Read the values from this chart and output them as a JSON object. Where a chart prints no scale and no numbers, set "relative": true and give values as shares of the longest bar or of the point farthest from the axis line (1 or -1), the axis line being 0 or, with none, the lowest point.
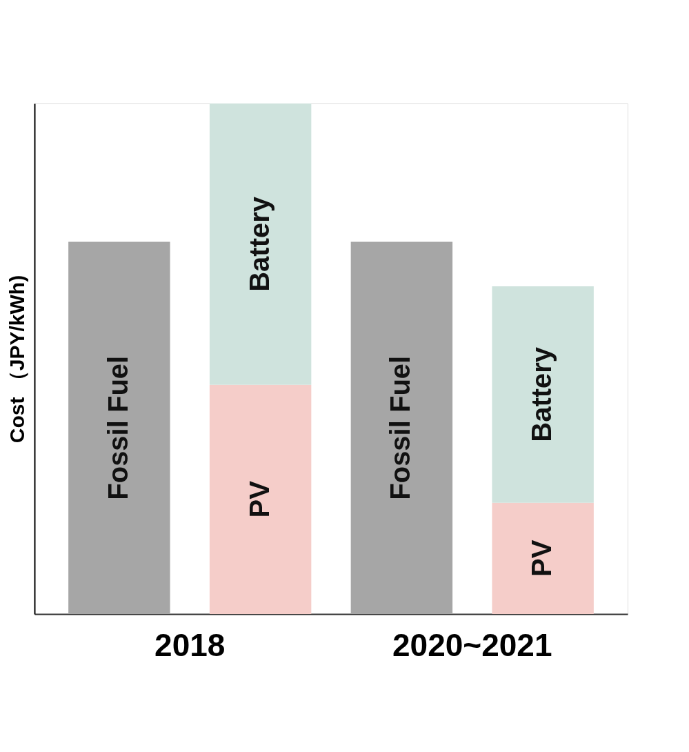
{
  "chart_data": {
    "type": "bar",
    "ylabel": "Cost （JPY/kWh)",
    "categories": [
      null,
      null,
      null,
      null
    ],
    "relative": true,
    "stacked": true,
    "legend": false,
    "grid": false,
    "series": [
      {
        "name": "Fossil Fuel",
        "color": "#a6a6a6",
        "values": [
          0.729,
          null,
          0.729,
          null
        ]
      },
      {
        "name": "PV",
        "color": "#f5cdc9",
        "values": [
          null,
          0.449,
          null,
          0.218
        ]
      },
      {
        "name": "Battery",
        "color": "#cfe3dd",
        "values": [
          null,
          0.551,
          null,
          0.424
        ]
      }
    ],
    "annotations": [
      "2018",
      "2020~2021"
    ]
  }
}
